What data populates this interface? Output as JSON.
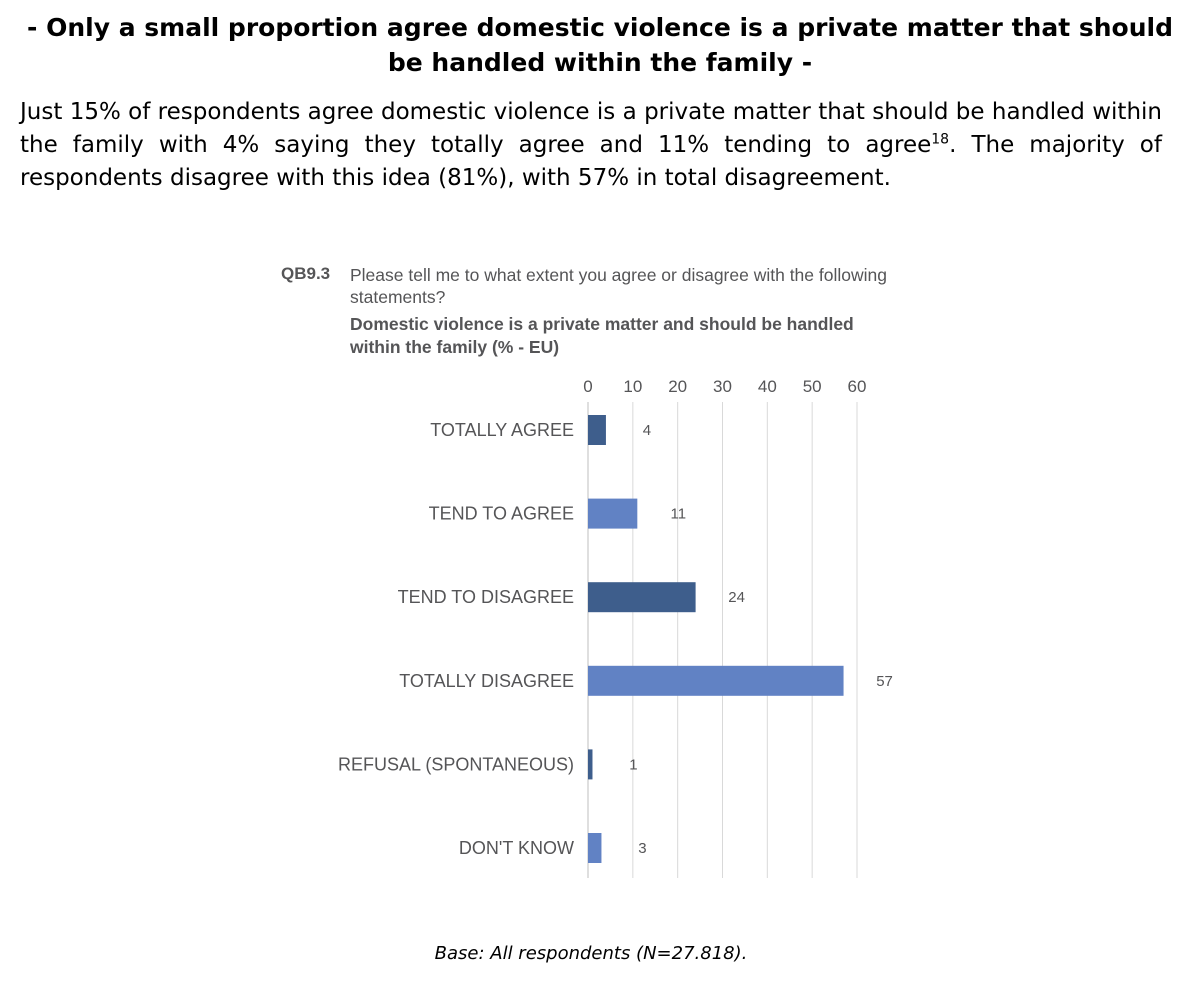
{
  "heading": "- Only a small proportion agree domestic violence is a private matter that should be handled within the family -",
  "intro": {
    "part1": "Just 15% of respondents agree domestic violence is a private matter that should be handled within the family with 4% saying they totally agree and 11% tending to agree",
    "footnote": "18",
    "part2": ". The majority of respondents disagree with this idea (81%), with 57% in total disagreement."
  },
  "question": {
    "code": "QB9.3",
    "text": "Please tell me to what extent you agree or disagree with the following statements?",
    "subtitle": "Domestic violence is a private matter and should be handled within the family  (% - EU)"
  },
  "colors": {
    "dark_blue": "#3e5e8c",
    "light_blue": "#6182c4",
    "grid": "#d9d9d9",
    "text": "#555557"
  },
  "chart_data": {
    "type": "bar",
    "orientation": "horizontal",
    "title": "Domestic violence is a private matter and should be handled within the family  (% - EU)",
    "xlabel": "",
    "ylabel": "",
    "xlim": [
      0,
      60
    ],
    "ticks": [
      "0",
      "10",
      "20",
      "30",
      "40",
      "50",
      "60"
    ],
    "grid": true,
    "categories": [
      "TOTALLY AGREE",
      "TEND TO AGREE",
      "TEND TO DISAGREE",
      "TOTALLY DISAGREE",
      "REFUSAL (SPONTANEOUS)",
      "DON'T KNOW"
    ],
    "values": [
      4,
      11,
      24,
      57,
      1,
      3
    ],
    "value_labels": [
      "4",
      "11",
      "24",
      "57",
      "1",
      "3"
    ],
    "bar_colors": [
      "#3e5e8c",
      "#6182c4",
      "#3e5e8c",
      "#6182c4",
      "#3e5e8c",
      "#6182c4"
    ]
  },
  "base_note": "Base: All respondents (N=27.818)."
}
